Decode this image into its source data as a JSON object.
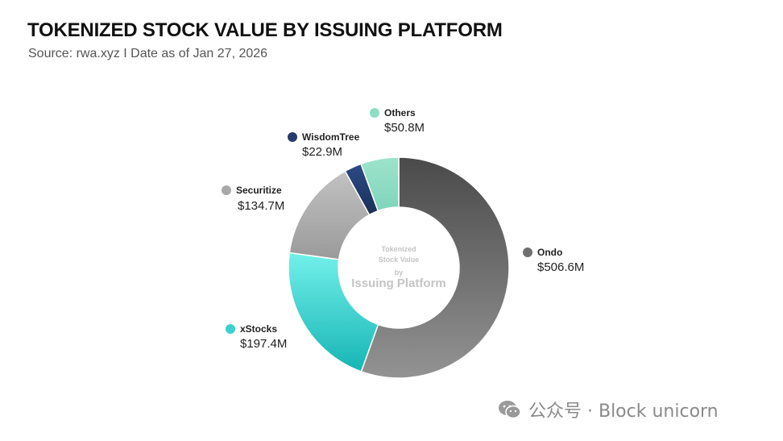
{
  "header": {
    "title": "TOKENIZED STOCK VALUE BY ISSUING PLATFORM",
    "subtitle": "Source: rwa.xyz  I  Date as of Jan 27, 2026"
  },
  "chart_data": {
    "type": "pie",
    "variant": "donut",
    "title": "TOKENIZED STOCK VALUE BY ISSUING PLATFORM",
    "subtitle": "Source: rwa.xyz  I  Date as of Jan 27, 2026",
    "center_label": {
      "line1": "Tokenized",
      "line2": "Stock Value",
      "line3": "by",
      "line4": "Issuing Platform"
    },
    "slices": [
      {
        "name": "Ondo",
        "value": 506.6,
        "label": "$506.6M",
        "color": "#6f6f6f"
      },
      {
        "name": "xStocks",
        "value": 197.4,
        "label": "$197.4M",
        "color": "#3ccfcf"
      },
      {
        "name": "Securitize",
        "value": 134.7,
        "label": "$134.7M",
        "color": "#a9a9a9"
      },
      {
        "name": "WisdomTree",
        "value": 22.9,
        "label": "$22.9M",
        "color": "#243b6b"
      },
      {
        "name": "Others",
        "value": 50.8,
        "label": "$50.8M",
        "color": "#8fdcc4"
      }
    ],
    "legend_placement": "around-chart",
    "start_angle": "12 o'clock",
    "direction": "clockwise"
  },
  "watermark": {
    "icon": "wechat-icon",
    "text": "公众号 · Block unicorn"
  }
}
